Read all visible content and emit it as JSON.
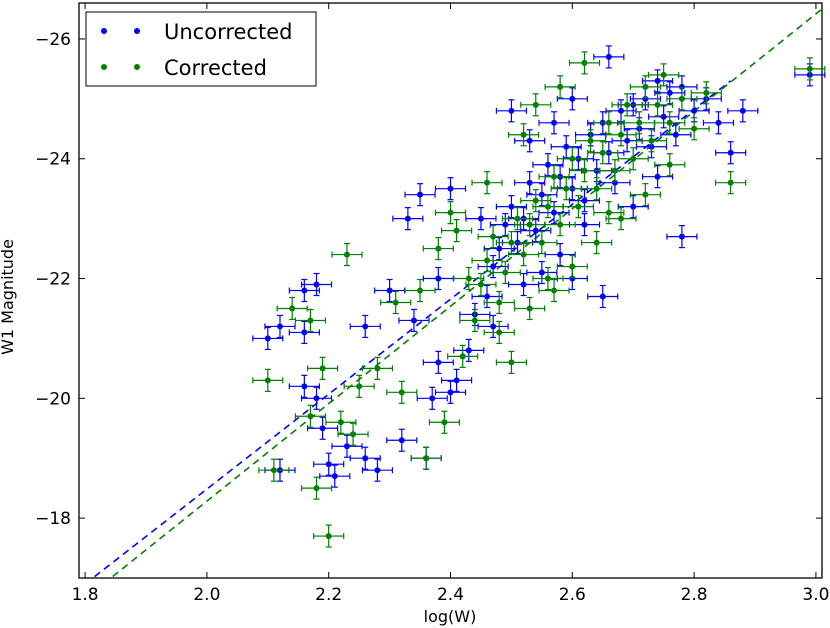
{
  "chart_data": {
    "type": "scatter",
    "title": "",
    "xlabel": "log(W)",
    "ylabel": "W1 Magnitude",
    "xlim": [
      1.79,
      3.01
    ],
    "ylim": [
      -17.0,
      -26.6
    ],
    "y_inverted": true,
    "x_ticks": [
      1.8,
      2.0,
      2.2,
      2.4,
      2.6,
      2.8,
      3.0
    ],
    "x_tick_labels": [
      "1.8",
      "2.0",
      "2.2",
      "2.4",
      "2.6",
      "2.8",
      "3.0"
    ],
    "y_ticks": [
      -18,
      -20,
      -22,
      -24,
      -26
    ],
    "y_tick_labels": [
      "−18",
      "−20",
      "−22",
      "−24",
      "−26"
    ],
    "legend_position": "top-left",
    "colors": {
      "uncorrected": "#0000ff",
      "corrected": "#008000"
    },
    "series": [
      {
        "name": "Uncorrected",
        "color": "#0000ff",
        "points": [
          [
            2.1,
            -21.0
          ],
          [
            2.12,
            -21.2
          ],
          [
            2.16,
            -21.8
          ],
          [
            2.16,
            -21.1
          ],
          [
            2.18,
            -21.9
          ],
          [
            2.16,
            -20.2
          ],
          [
            2.18,
            -20.0
          ],
          [
            2.19,
            -19.5
          ],
          [
            2.2,
            -18.9
          ],
          [
            2.21,
            -18.7
          ],
          [
            2.12,
            -18.8
          ],
          [
            2.23,
            -19.2
          ],
          [
            2.26,
            -19.0
          ],
          [
            2.28,
            -18.8
          ],
          [
            2.32,
            -19.3
          ],
          [
            2.36,
            -19.0
          ],
          [
            2.26,
            -21.2
          ],
          [
            2.3,
            -21.8
          ],
          [
            2.34,
            -21.3
          ],
          [
            2.37,
            -20.0
          ],
          [
            2.4,
            -20.1
          ],
          [
            2.38,
            -20.6
          ],
          [
            2.35,
            -23.4
          ],
          [
            2.4,
            -23.5
          ],
          [
            2.33,
            -23.0
          ],
          [
            2.38,
            -22.0
          ],
          [
            2.41,
            -20.3
          ],
          [
            2.43,
            -20.8
          ],
          [
            2.44,
            -21.4
          ],
          [
            2.46,
            -21.7
          ],
          [
            2.47,
            -22.2
          ],
          [
            2.48,
            -22.5
          ],
          [
            2.49,
            -22.9
          ],
          [
            2.5,
            -23.2
          ],
          [
            2.51,
            -22.6
          ],
          [
            2.52,
            -23.0
          ],
          [
            2.53,
            -23.6
          ],
          [
            2.54,
            -22.8
          ],
          [
            2.55,
            -23.4
          ],
          [
            2.56,
            -23.9
          ],
          [
            2.57,
            -23.1
          ],
          [
            2.58,
            -23.7
          ],
          [
            2.59,
            -24.2
          ],
          [
            2.6,
            -23.5
          ],
          [
            2.61,
            -24.0
          ],
          [
            2.62,
            -23.3
          ],
          [
            2.63,
            -24.4
          ],
          [
            2.64,
            -23.8
          ],
          [
            2.65,
            -24.6
          ],
          [
            2.66,
            -24.1
          ],
          [
            2.67,
            -23.6
          ],
          [
            2.68,
            -24.8
          ],
          [
            2.69,
            -24.3
          ],
          [
            2.7,
            -24.9
          ],
          [
            2.71,
            -24.5
          ],
          [
            2.72,
            -25.0
          ],
          [
            2.73,
            -24.2
          ],
          [
            2.74,
            -25.3
          ],
          [
            2.75,
            -24.7
          ],
          [
            2.76,
            -25.1
          ],
          [
            2.77,
            -24.4
          ],
          [
            2.78,
            -25.2
          ],
          [
            2.8,
            -24.8
          ],
          [
            2.82,
            -25.0
          ],
          [
            2.84,
            -24.6
          ],
          [
            2.86,
            -24.1
          ],
          [
            2.88,
            -24.8
          ],
          [
            2.66,
            -25.7
          ],
          [
            2.65,
            -21.7
          ],
          [
            2.78,
            -22.7
          ],
          [
            2.6,
            -22.0
          ],
          [
            2.5,
            -24.8
          ],
          [
            2.55,
            -22.1
          ],
          [
            2.45,
            -23.0
          ],
          [
            2.47,
            -21.2
          ],
          [
            2.52,
            -21.9
          ],
          [
            2.58,
            -22.4
          ],
          [
            2.62,
            -22.9
          ],
          [
            2.7,
            -23.2
          ],
          [
            2.74,
            -23.7
          ],
          [
            2.53,
            -24.3
          ],
          [
            2.6,
            -25.0
          ],
          [
            2.57,
            -24.6
          ],
          [
            2.99,
            -25.4
          ]
        ]
      },
      {
        "name": "Corrected",
        "color": "#008000",
        "points": [
          [
            2.1,
            -20.3
          ],
          [
            2.14,
            -21.5
          ],
          [
            2.17,
            -21.3
          ],
          [
            2.19,
            -20.5
          ],
          [
            2.17,
            -19.7
          ],
          [
            2.18,
            -18.5
          ],
          [
            2.2,
            -17.7
          ],
          [
            2.11,
            -18.8
          ],
          [
            2.22,
            -19.6
          ],
          [
            2.24,
            -19.4
          ],
          [
            2.25,
            -20.2
          ],
          [
            2.23,
            -22.4
          ],
          [
            2.28,
            -20.5
          ],
          [
            2.32,
            -20.1
          ],
          [
            2.36,
            -19.0
          ],
          [
            2.39,
            -19.6
          ],
          [
            2.31,
            -21.6
          ],
          [
            2.35,
            -21.8
          ],
          [
            2.38,
            -22.5
          ],
          [
            2.4,
            -23.1
          ],
          [
            2.42,
            -20.7
          ],
          [
            2.44,
            -21.3
          ],
          [
            2.45,
            -21.9
          ],
          [
            2.46,
            -22.3
          ],
          [
            2.47,
            -22.7
          ],
          [
            2.48,
            -21.6
          ],
          [
            2.49,
            -22.1
          ],
          [
            2.5,
            -22.6
          ],
          [
            2.51,
            -23.0
          ],
          [
            2.52,
            -22.4
          ],
          [
            2.53,
            -22.9
          ],
          [
            2.54,
            -23.3
          ],
          [
            2.55,
            -22.6
          ],
          [
            2.56,
            -23.2
          ],
          [
            2.57,
            -23.7
          ],
          [
            2.58,
            -22.9
          ],
          [
            2.59,
            -23.5
          ],
          [
            2.6,
            -24.0
          ],
          [
            2.61,
            -23.2
          ],
          [
            2.62,
            -23.8
          ],
          [
            2.63,
            -24.3
          ],
          [
            2.64,
            -23.5
          ],
          [
            2.65,
            -24.1
          ],
          [
            2.66,
            -24.6
          ],
          [
            2.67,
            -23.8
          ],
          [
            2.68,
            -24.4
          ],
          [
            2.69,
            -24.9
          ],
          [
            2.7,
            -24.0
          ],
          [
            2.71,
            -24.6
          ],
          [
            2.72,
            -25.2
          ],
          [
            2.73,
            -24.3
          ],
          [
            2.74,
            -24.9
          ],
          [
            2.75,
            -25.4
          ],
          [
            2.76,
            -24.6
          ],
          [
            2.78,
            -25.0
          ],
          [
            2.8,
            -24.5
          ],
          [
            2.82,
            -25.1
          ],
          [
            2.86,
            -23.6
          ],
          [
            2.54,
            -24.9
          ],
          [
            2.62,
            -25.6
          ],
          [
            2.57,
            -21.8
          ],
          [
            2.5,
            -20.6
          ],
          [
            2.48,
            -21.1
          ],
          [
            2.53,
            -21.5
          ],
          [
            2.6,
            -22.2
          ],
          [
            2.64,
            -22.6
          ],
          [
            2.68,
            -23.0
          ],
          [
            2.72,
            -23.4
          ],
          [
            2.76,
            -23.9
          ],
          [
            2.58,
            -25.2
          ],
          [
            2.52,
            -24.4
          ],
          [
            2.46,
            -23.6
          ],
          [
            2.43,
            -22.0
          ],
          [
            2.41,
            -22.8
          ],
          [
            2.56,
            -22.0
          ],
          [
            2.66,
            -23.1
          ],
          [
            2.99,
            -25.5
          ]
        ]
      }
    ],
    "fit_lines": [
      {
        "name": "Uncorrected fit",
        "color": "#0000ff",
        "x": [
          1.8,
          2.86
        ],
        "y": [
          -16.9,
          -25.3
        ]
      },
      {
        "name": "Corrected fit",
        "color": "#008000",
        "x": [
          1.83,
          3.01
        ],
        "y": [
          -16.9,
          -26.5
        ]
      }
    ]
  }
}
